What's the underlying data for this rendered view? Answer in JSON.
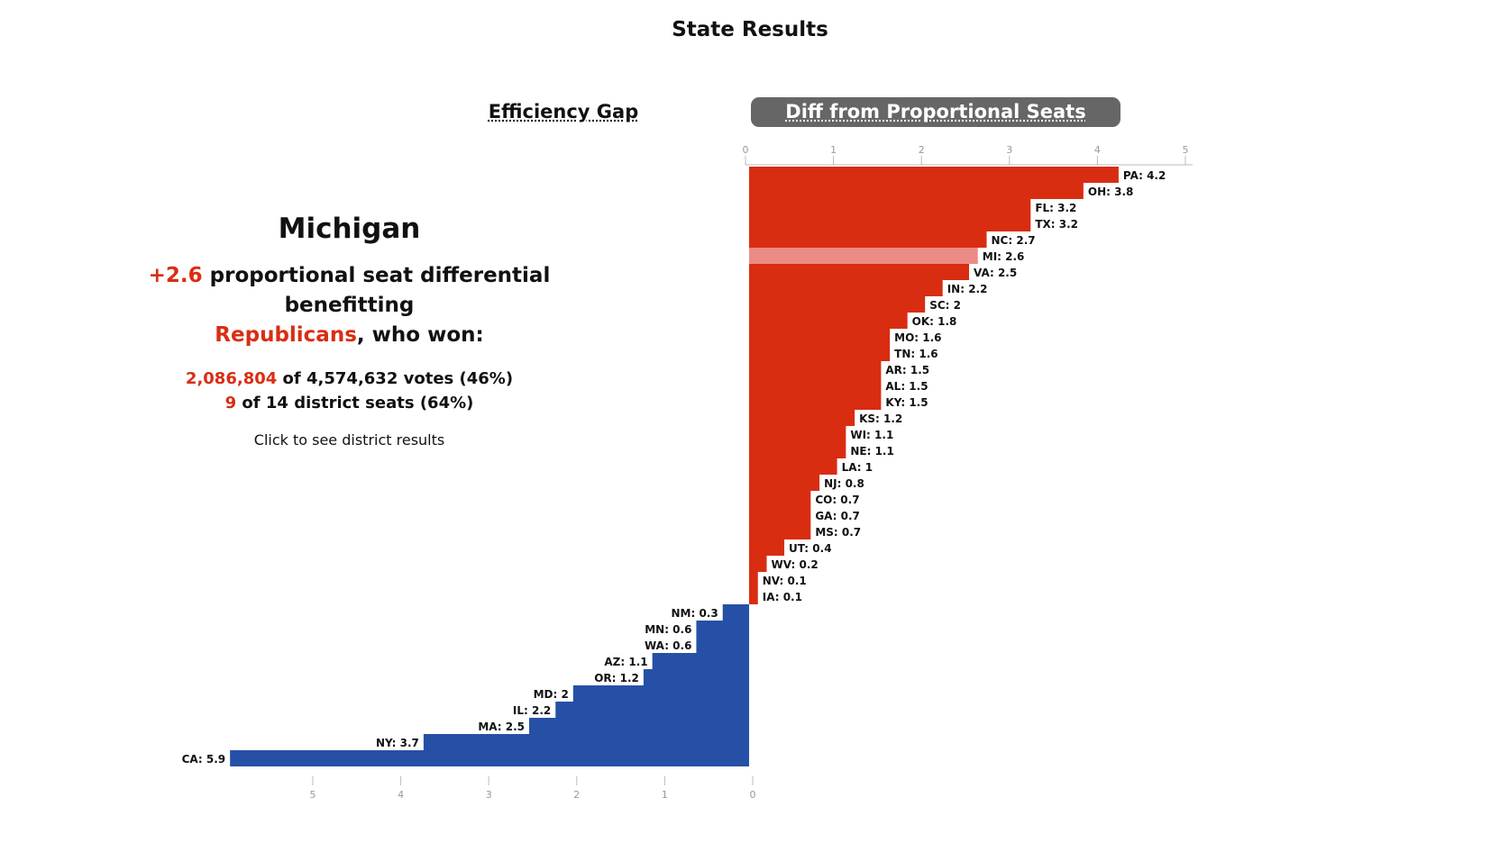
{
  "title": "State Results",
  "tabs": {
    "efficiency_gap": "Efficiency Gap",
    "diff_proportional": "Diff from Proportional Seats"
  },
  "selected_state": {
    "name": "Michigan",
    "differential": "+2.6",
    "headline_text": " proportional seat differential benefitting",
    "party": "Republicans",
    "party_suffix": ", who won:",
    "votes_won": "2,086,804",
    "votes_text": " of 4,574,632 votes (46%)",
    "seats_won": "9",
    "seats_text": " of 14 district seats (64%)",
    "click_hint": "Click to see district results"
  },
  "colors": {
    "republican": "#d92d12",
    "republican_highlight": "#ec8b86",
    "democrat": "#2650a6",
    "axis": "#bbbbbb"
  },
  "chart_data": {
    "type": "bar",
    "title": "Diff from Proportional Seats",
    "highlight": "MI",
    "top_axis_ticks": [
      "0",
      "1",
      "2",
      "3",
      "4",
      "5"
    ],
    "bottom_axis_ticks": [
      "5",
      "4",
      "3",
      "2",
      "1",
      "0"
    ],
    "xlim": [
      0,
      5
    ],
    "republican": [
      {
        "state": "PA",
        "value": 4.2,
        "label": "PA: 4.2"
      },
      {
        "state": "OH",
        "value": 3.8,
        "label": "OH: 3.8"
      },
      {
        "state": "FL",
        "value": 3.2,
        "label": "FL: 3.2"
      },
      {
        "state": "TX",
        "value": 3.2,
        "label": "TX: 3.2"
      },
      {
        "state": "NC",
        "value": 2.7,
        "label": "NC: 2.7"
      },
      {
        "state": "MI",
        "value": 2.6,
        "label": "MI: 2.6"
      },
      {
        "state": "VA",
        "value": 2.5,
        "label": "VA: 2.5"
      },
      {
        "state": "IN",
        "value": 2.2,
        "label": "IN: 2.2"
      },
      {
        "state": "SC",
        "value": 2,
        "label": "SC: 2"
      },
      {
        "state": "OK",
        "value": 1.8,
        "label": "OK: 1.8"
      },
      {
        "state": "MO",
        "value": 1.6,
        "label": "MO: 1.6"
      },
      {
        "state": "TN",
        "value": 1.6,
        "label": "TN: 1.6"
      },
      {
        "state": "AR",
        "value": 1.5,
        "label": "AR: 1.5"
      },
      {
        "state": "AL",
        "value": 1.5,
        "label": "AL: 1.5"
      },
      {
        "state": "KY",
        "value": 1.5,
        "label": "KY: 1.5"
      },
      {
        "state": "KS",
        "value": 1.2,
        "label": "KS: 1.2"
      },
      {
        "state": "WI",
        "value": 1.1,
        "label": "WI: 1.1"
      },
      {
        "state": "NE",
        "value": 1.1,
        "label": "NE: 1.1"
      },
      {
        "state": "LA",
        "value": 1,
        "label": "LA: 1"
      },
      {
        "state": "NJ",
        "value": 0.8,
        "label": "NJ: 0.8"
      },
      {
        "state": "CO",
        "value": 0.7,
        "label": "CO: 0.7"
      },
      {
        "state": "GA",
        "value": 0.7,
        "label": "GA: 0.7"
      },
      {
        "state": "MS",
        "value": 0.7,
        "label": "MS: 0.7"
      },
      {
        "state": "UT",
        "value": 0.4,
        "label": "UT: 0.4"
      },
      {
        "state": "WV",
        "value": 0.2,
        "label": "WV: 0.2"
      },
      {
        "state": "NV",
        "value": 0.1,
        "label": "NV: 0.1"
      },
      {
        "state": "IA",
        "value": 0.1,
        "label": "IA: 0.1"
      }
    ],
    "democrat": [
      {
        "state": "NM",
        "value": 0.3,
        "label": "NM: 0.3"
      },
      {
        "state": "MN",
        "value": 0.6,
        "label": "MN: 0.6"
      },
      {
        "state": "WA",
        "value": 0.6,
        "label": "WA: 0.6"
      },
      {
        "state": "AZ",
        "value": 1.1,
        "label": "AZ: 1.1"
      },
      {
        "state": "OR",
        "value": 1.2,
        "label": "OR: 1.2"
      },
      {
        "state": "MD",
        "value": 2,
        "label": "MD: 2"
      },
      {
        "state": "IL",
        "value": 2.2,
        "label": "IL: 2.2"
      },
      {
        "state": "MA",
        "value": 2.5,
        "label": "MA: 2.5"
      },
      {
        "state": "NY",
        "value": 3.7,
        "label": "NY: 3.7"
      },
      {
        "state": "CA",
        "value": 5.9,
        "label": "CA: 5.9"
      }
    ]
  }
}
